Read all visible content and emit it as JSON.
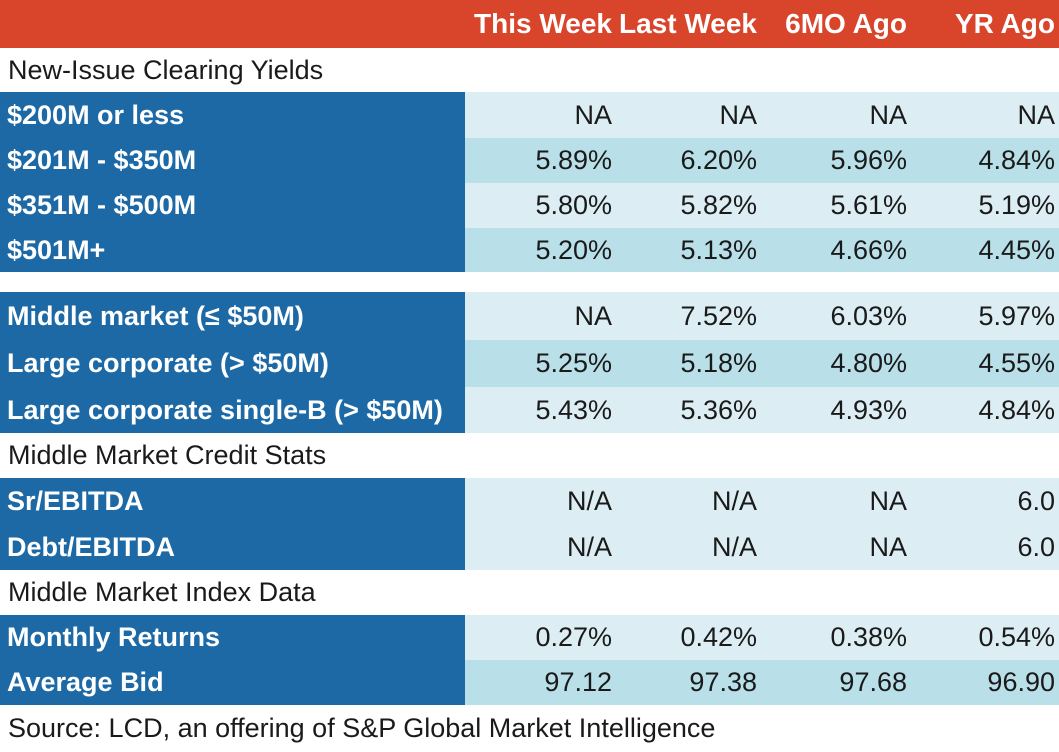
{
  "header": {
    "columns": [
      "This Week",
      "Last Week",
      "6MO Ago",
      "YR Ago"
    ]
  },
  "sections": {
    "new_issue": "New-Issue Clearing Yields",
    "credit_stats": "Middle Market Credit Stats",
    "index_data": "Middle Market Index Data"
  },
  "rows": [
    {
      "label": "$200M or less",
      "values": [
        "NA",
        "NA",
        "NA",
        "NA"
      ]
    },
    {
      "label": "$201M - $350M",
      "values": [
        "5.89%",
        "6.20%",
        "5.96%",
        "4.84%"
      ]
    },
    {
      "label": "$351M - $500M",
      "values": [
        "5.80%",
        "5.82%",
        "5.61%",
        "5.19%"
      ]
    },
    {
      "label": "$501M+",
      "values": [
        "5.20%",
        "5.13%",
        "4.66%",
        "4.45%"
      ]
    },
    {
      "label": "Middle market (≤ $50M)",
      "values": [
        "NA",
        "7.52%",
        "6.03%",
        "5.97%"
      ]
    },
    {
      "label": "Large corporate (> $50M)",
      "values": [
        "5.25%",
        "5.18%",
        "4.80%",
        "4.55%"
      ]
    },
    {
      "label": "Large corporate single-B (> $50M)",
      "values": [
        "5.43%",
        "5.36%",
        "4.93%",
        "4.84%"
      ]
    },
    {
      "label": "Sr/EBITDA",
      "values": [
        "N/A",
        "N/A",
        "NA",
        "6.0"
      ]
    },
    {
      "label": "Debt/EBITDA",
      "values": [
        "N/A",
        "N/A",
        "NA",
        "6.0"
      ]
    },
    {
      "label": "Monthly Returns",
      "values": [
        "0.27%",
        "0.42%",
        "0.38%",
        "0.54%"
      ]
    },
    {
      "label": "Average Bid",
      "values": [
        "97.12",
        "97.38",
        "97.68",
        "96.90"
      ]
    }
  ],
  "footer": "Source: LCD, an offering of S&P Global Market Intelligence",
  "colors": {
    "header_bg": "#d9452b",
    "label_bg": "#1d69a6",
    "row_light": "#dcedf4",
    "row_dark": "#b9dfe8"
  },
  "chart_data": {
    "type": "table",
    "columns": [
      "This Week",
      "Last Week",
      "6MO Ago",
      "YR Ago"
    ],
    "groups": [
      {
        "name": "New-Issue Clearing Yields",
        "rows": [
          {
            "label": "$200M or less",
            "values": [
              "NA",
              "NA",
              "NA",
              "NA"
            ]
          },
          {
            "label": "$201M - $350M",
            "values": [
              "5.89%",
              "6.20%",
              "5.96%",
              "4.84%"
            ]
          },
          {
            "label": "$351M - $500M",
            "values": [
              "5.80%",
              "5.82%",
              "5.61%",
              "5.19%"
            ]
          },
          {
            "label": "$501M+",
            "values": [
              "5.20%",
              "5.13%",
              "4.66%",
              "4.45%"
            ]
          },
          {
            "label": "Middle market (≤ $50M)",
            "values": [
              "NA",
              "7.52%",
              "6.03%",
              "5.97%"
            ]
          },
          {
            "label": "Large corporate (> $50M)",
            "values": [
              "5.25%",
              "5.18%",
              "4.80%",
              "4.55%"
            ]
          },
          {
            "label": "Large corporate single-B (> $50M)",
            "values": [
              "5.43%",
              "5.36%",
              "4.93%",
              "4.84%"
            ]
          }
        ]
      },
      {
        "name": "Middle Market Credit Stats",
        "rows": [
          {
            "label": "Sr/EBITDA",
            "values": [
              "N/A",
              "N/A",
              "NA",
              "6.0"
            ]
          },
          {
            "label": "Debt/EBITDA",
            "values": [
              "N/A",
              "N/A",
              "NA",
              "6.0"
            ]
          }
        ]
      },
      {
        "name": "Middle Market Index Data",
        "rows": [
          {
            "label": "Monthly Returns",
            "values": [
              "0.27%",
              "0.42%",
              "0.38%",
              "0.54%"
            ]
          },
          {
            "label": "Average Bid",
            "values": [
              "97.12",
              "97.38",
              "97.68",
              "96.90"
            ]
          }
        ]
      }
    ]
  }
}
